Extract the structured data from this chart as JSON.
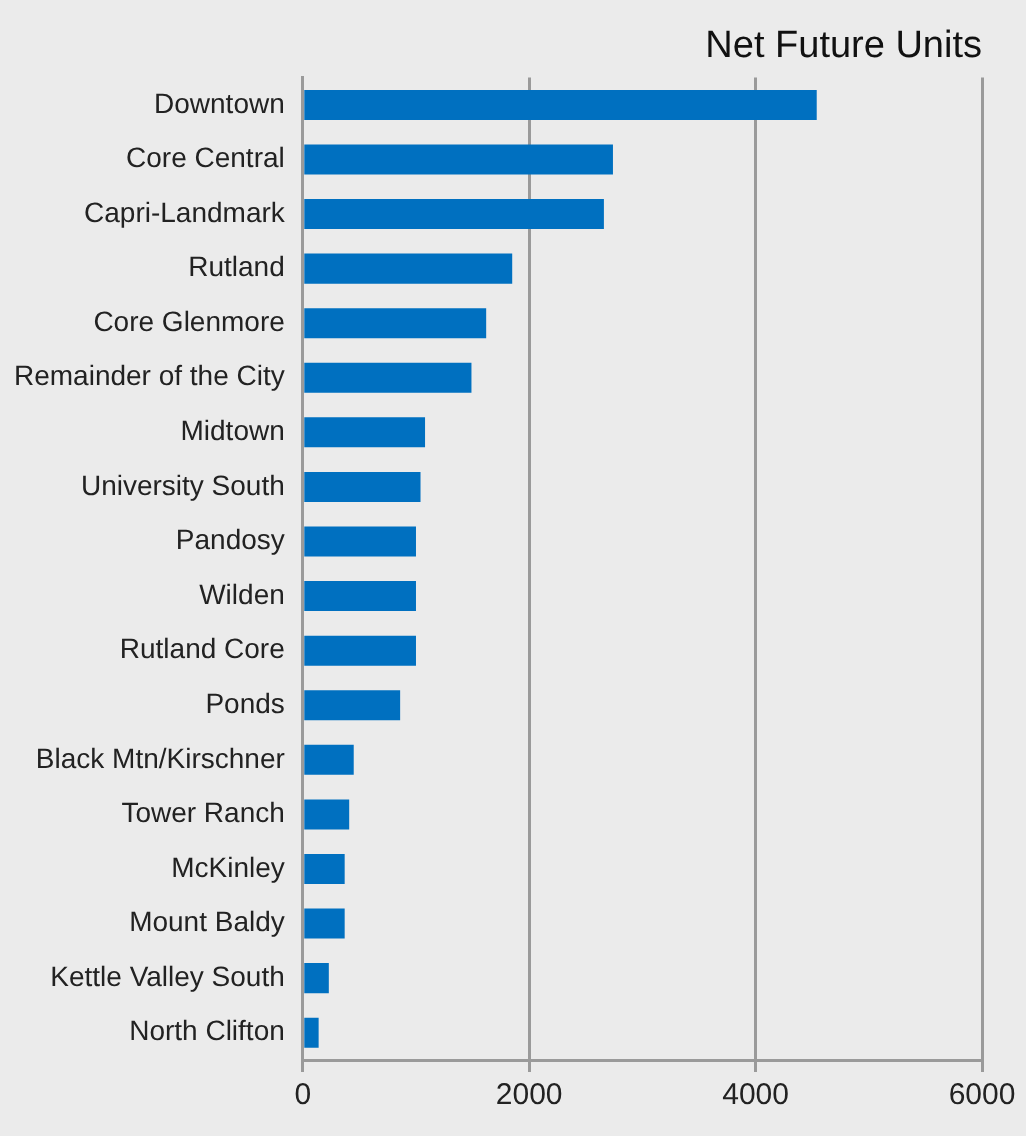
{
  "chart_data": {
    "type": "bar",
    "orientation": "horizontal",
    "title": "Net Future Units",
    "categories": [
      "Downtown",
      "Core Central",
      "Capri-Landmark",
      "Rutland",
      "Core Glenmore",
      "Remainder of the City",
      "Midtown",
      "University South",
      "Pandosy",
      "Wilden",
      "Rutland Core",
      "Ponds",
      "Black Mtn/Kirschner",
      "Tower Ranch",
      "McKinley",
      "Mount Baldy",
      "Kettle Valley South",
      "North Clifton"
    ],
    "values": [
      4540,
      2740,
      2660,
      1850,
      1620,
      1490,
      1080,
      1040,
      1000,
      1000,
      1000,
      860,
      450,
      410,
      370,
      370,
      230,
      140
    ],
    "color": "#0070c0",
    "xlim": [
      0,
      6000
    ],
    "xticks": [
      0,
      2000,
      4000,
      6000
    ],
    "grid": "x"
  }
}
